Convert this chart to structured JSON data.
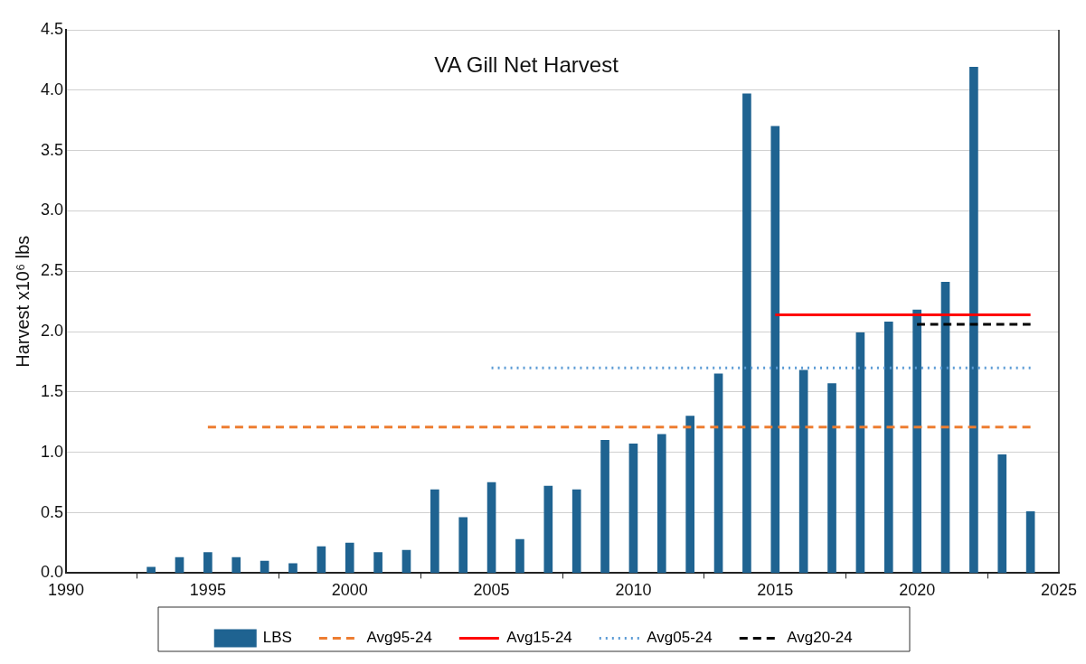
{
  "chart_data": {
    "type": "bar",
    "title": "VA Gill Net Harvest",
    "ylabel": "Harvest x10⁶ lbs",
    "xlim": [
      1990,
      2025
    ],
    "xticks": [
      1990,
      1995,
      2000,
      2005,
      2010,
      2015,
      2020,
      2025
    ],
    "ylim": [
      0,
      4.5
    ],
    "yticks": [
      {
        "value": 0,
        "label": "0.0"
      },
      0.5,
      {
        "value": 1,
        "label": "1.0"
      },
      1.5,
      {
        "value": 2,
        "label": "2.0"
      },
      2.5,
      {
        "value": 3,
        "label": "3.0"
      },
      3.5,
      {
        "value": 4,
        "label": "4.0"
      },
      4.5
    ],
    "grid": "y",
    "legend": "bottom",
    "marker": "none",
    "series": [
      {
        "name": "LBS",
        "color": "#1f6391",
        "x": [
          1993,
          1994,
          1995,
          1996,
          1997,
          1998,
          1999,
          2000,
          2001,
          2002,
          2003,
          2004,
          2005,
          2006,
          2007,
          2008,
          2009,
          2010,
          2011,
          2012,
          2013,
          2014,
          2015,
          2016,
          2017,
          2018,
          2019,
          2020,
          2021,
          2022,
          2023,
          2024
        ],
        "values": [
          0.05,
          0.13,
          0.17,
          0.13,
          0.1,
          0.08,
          0.22,
          0.25,
          0.17,
          0.19,
          0.69,
          0.46,
          0.75,
          0.28,
          0.72,
          0.69,
          1.1,
          1.07,
          1.15,
          1.3,
          1.65,
          3.97,
          3.7,
          1.68,
          1.57,
          1.99,
          2.08,
          2.18,
          2.41,
          4.19,
          0.98,
          0.51
        ]
      },
      {
        "name": "Avg95-24",
        "type": "line",
        "color": "#ed7d31",
        "line_style": "dashed",
        "x": [
          1995,
          2024
        ],
        "values": [
          1.21,
          1.21
        ]
      },
      {
        "name": "Avg15-24",
        "type": "line",
        "color": "#ff0000",
        "line_style": "solid",
        "x": [
          2015,
          2024
        ],
        "values": [
          2.14,
          2.14
        ]
      },
      {
        "name": "Avg05-24",
        "type": "line",
        "color": "#5b9bd5",
        "line_style": "dotted",
        "x": [
          2005,
          2024
        ],
        "values": [
          1.7,
          1.7
        ]
      },
      {
        "name": "Avg20-24",
        "type": "line",
        "color": "#000000",
        "line_style": "dashed",
        "x": [
          2020,
          2024
        ],
        "values": [
          2.06,
          2.06
        ]
      }
    ]
  }
}
